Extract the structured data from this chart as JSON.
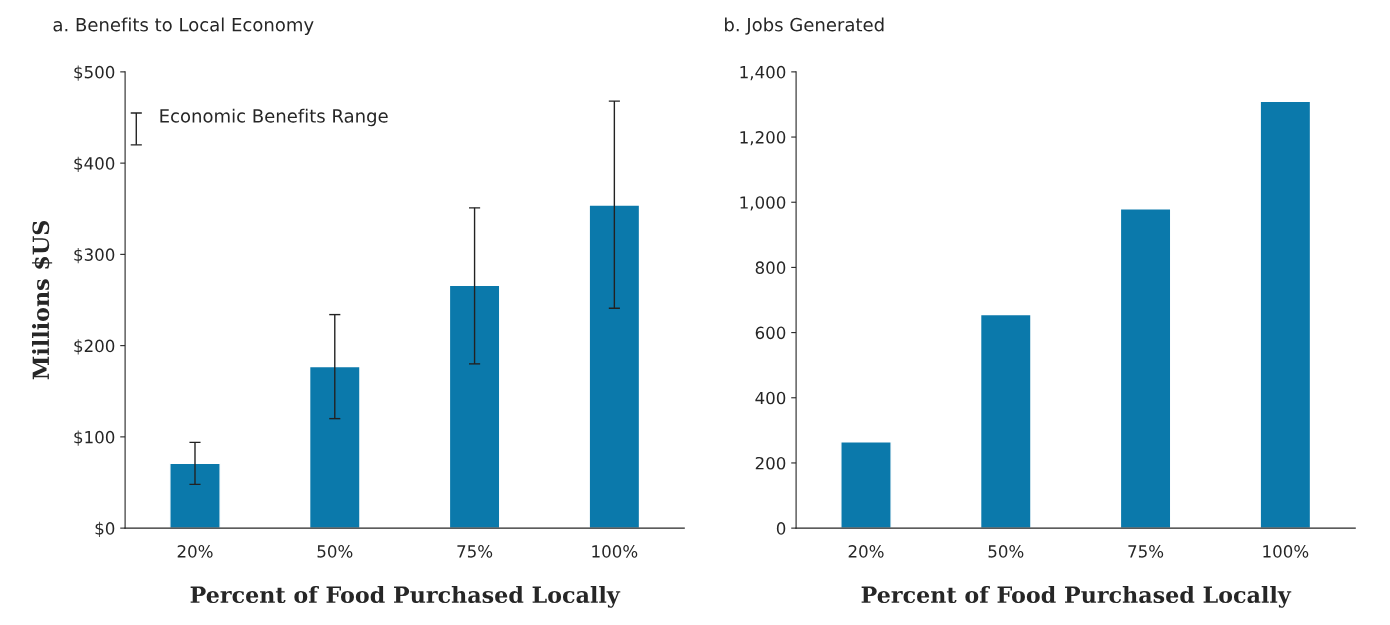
{
  "chart_data": [
    {
      "type": "bar",
      "title": "a. Benefits to Local Economy",
      "xlabel": "Percent of Food Purchased Locally",
      "ylabel": "Millions $US",
      "categories": [
        "20%",
        "50%",
        "75%",
        "100%"
      ],
      "series": [
        {
          "color": "#0b79ab",
          "values": [
            71,
            177,
            266,
            354
          ],
          "errors": [
            [
              48,
              94
            ],
            [
              120,
              234
            ],
            [
              180,
              351
            ],
            [
              241,
              468
            ]
          ]
        }
      ],
      "annotations": [
        "Economic Benefits Range"
      ],
      "ylim": [
        0,
        500
      ],
      "yticks": [
        {
          "value": 0,
          "label": "$0"
        },
        {
          "value": 100,
          "label": "$100"
        },
        {
          "value": 200,
          "label": "$200"
        },
        {
          "value": 300,
          "label": "$300"
        },
        {
          "value": 400,
          "label": "$400"
        },
        {
          "value": 500,
          "label": "$500"
        }
      ],
      "grid": false
    },
    {
      "type": "bar",
      "title": "b. Jobs Generated",
      "xlabel": "Percent of Food Purchased Locally",
      "categories": [
        "20%",
        "50%",
        "75%",
        "100%"
      ],
      "series": [
        {
          "color": "#0b79ab",
          "values": [
            265,
            655,
            980,
            1310
          ]
        }
      ],
      "ylim": [
        0,
        1400
      ],
      "yticks": [
        {
          "value": 0,
          "label": "0"
        },
        {
          "value": 200,
          "label": "200"
        },
        {
          "value": 400,
          "label": "400"
        },
        {
          "value": 600,
          "label": "600"
        },
        {
          "value": 800,
          "label": "800"
        },
        {
          "value": 1000,
          "label": "1,000"
        },
        {
          "value": 1200,
          "label": "1,200"
        },
        {
          "value": 1400,
          "label": "1,400"
        }
      ],
      "grid": false
    }
  ]
}
